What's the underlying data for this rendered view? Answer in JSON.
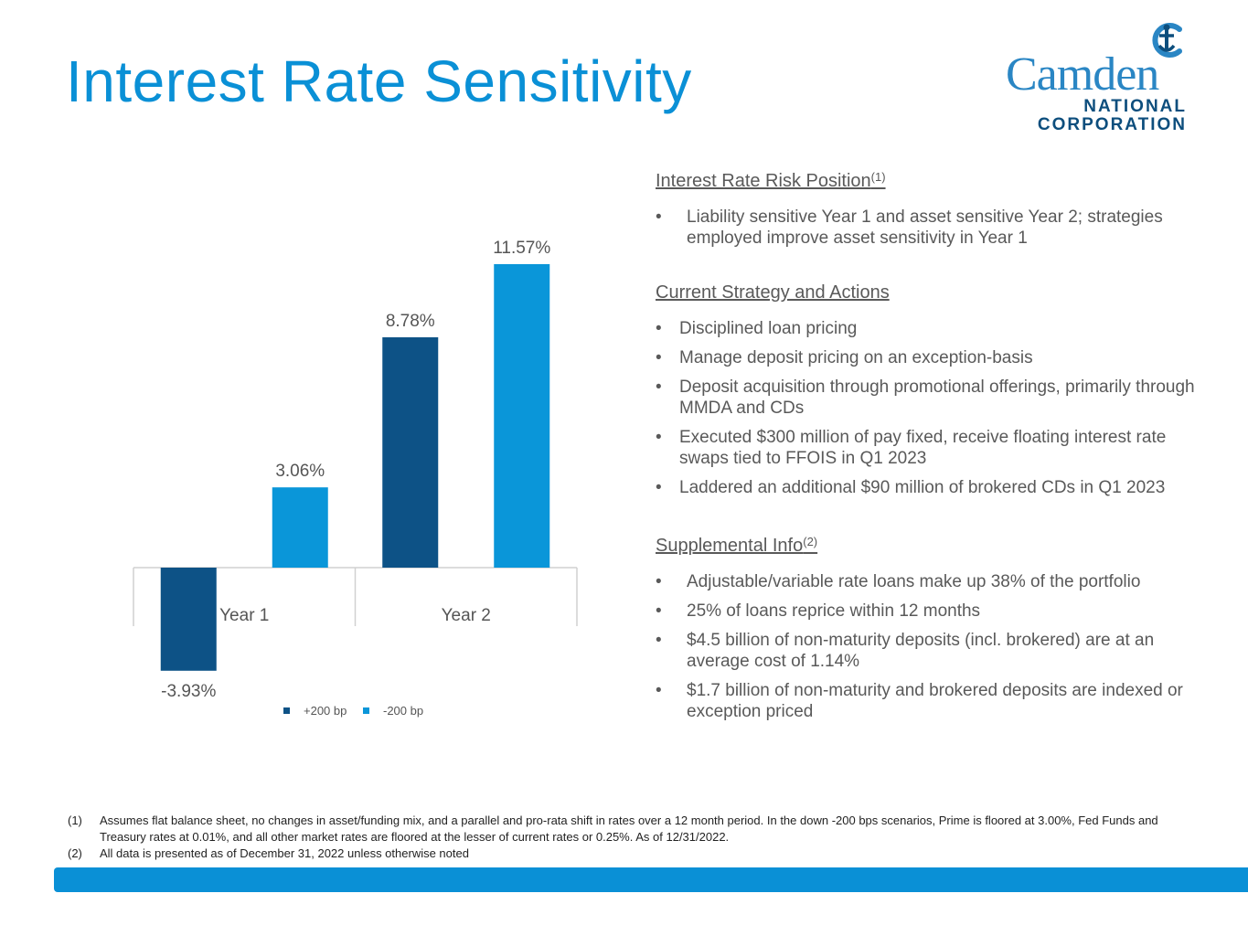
{
  "title": "Interest Rate Sensitivity",
  "logo": {
    "word": "Camden",
    "line1": "NATIONAL",
    "line2": "CORPORATION"
  },
  "colors": {
    "accent": "#0a90d6",
    "series_dark": "#0d5286",
    "series_light": "#0a96d9",
    "text": "#595959"
  },
  "chart_data": {
    "type": "bar",
    "categories": [
      "Year 1",
      "Year 2"
    ],
    "series": [
      {
        "name": "+200 bp",
        "values": [
          -3.93,
          8.78
        ],
        "labels": [
          "-3.93%",
          "8.78%"
        ],
        "color": "#0d5286"
      },
      {
        "name": "-200 bp",
        "values": [
          3.06,
          11.57
        ],
        "labels": [
          "3.06%",
          "11.57%"
        ],
        "color": "#0a96d9"
      }
    ],
    "title": "",
    "xlabel": "",
    "ylabel": "",
    "ylim": [
      -6,
      13
    ],
    "grid": false,
    "legend": "bottom-center"
  },
  "right": {
    "sections": [
      {
        "heading": "Interest Rate Risk Position",
        "sup": "(1)",
        "bullets": [
          "Liability sensitive Year 1 and asset sensitive Year 2; strategies employed improve asset sensitivity in Year 1"
        ]
      },
      {
        "heading": "Current Strategy and Actions",
        "sup": "",
        "bullets": [
          "Disciplined loan pricing",
          "Manage deposit pricing on an exception-basis",
          "Deposit acquisition through promotional offerings, primarily through MMDA and CDs",
          "Executed $300 million of pay fixed, receive floating interest rate swaps tied to FFOIS in Q1 2023",
          "Laddered an additional $90 million of brokered CDs in Q1 2023"
        ]
      },
      {
        "heading": "Supplemental Info",
        "sup": "(2)",
        "bullets": [
          "Adjustable/variable rate loans make up 38% of the portfolio",
          "25% of loans reprice within 12 months",
          "$4.5 billion of non-maturity deposits (incl. brokered) are at an average cost of 1.14%",
          "$1.7 billion of non-maturity and brokered deposits are indexed or exception priced"
        ]
      }
    ],
    "bullet_char": "•"
  },
  "footnotes": [
    {
      "num": "(1)",
      "text": "Assumes flat balance sheet, no changes in asset/funding mix, and a parallel and pro-rata shift in rates over a 12 month period. In the down -200 bps scenarios, Prime is floored at 3.00%, Fed Funds and Treasury rates at 0.01%, and all other market rates are floored at the lesser of current rates or 0.25%. As of 12/31/2022."
    },
    {
      "num": "(2)",
      "text": "All data is presented as of December 31, 2022 unless otherwise noted"
    }
  ]
}
